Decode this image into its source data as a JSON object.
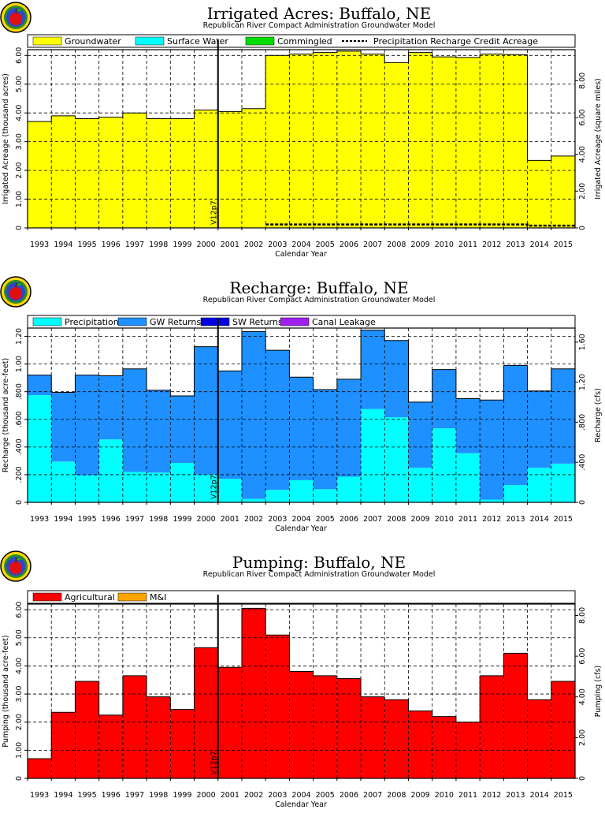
{
  "chart_data": [
    {
      "type": "bar",
      "title": "Irrigated Acres: Buffalo, NE",
      "subtitle": "Republican River Compact Administration Groundwater Model",
      "xlabel": "Calendar Year",
      "ylabel": "Irrigated Acreage (thousand acres)",
      "y2label": "Irrigated Acreage (square miles)",
      "categories": [
        "1993",
        "1994",
        "1995",
        "1996",
        "1997",
        "1998",
        "1999",
        "2000",
        "2001",
        "2002",
        "2003",
        "2004",
        "2005",
        "2006",
        "2007",
        "2008",
        "2009",
        "2010",
        "2011",
        "2012",
        "2013",
        "2014",
        "2015"
      ],
      "ylim": [
        0,
        6.2
      ],
      "yticks": [
        0,
        1.0,
        2.0,
        3.0,
        4.0,
        5.0,
        6.0
      ],
      "yticklabels": [
        "0",
        "1.00",
        "2.00",
        "3.00",
        "4.00",
        "5.00",
        "6.00"
      ],
      "y2lim": [
        0,
        9.69
      ],
      "y2ticks": [
        0,
        2.0,
        4.0,
        6.0,
        8.0
      ],
      "y2ticklabels": [
        "0",
        "2.00",
        "4.00",
        "6.00",
        "8.00"
      ],
      "grid": true,
      "legend": "top",
      "series": [
        {
          "name": "Groundwater",
          "color": "#ffff00",
          "kind": "stack",
          "values": [
            3.7,
            3.9,
            3.8,
            3.85,
            4.0,
            3.8,
            3.8,
            4.1,
            4.05,
            4.15,
            6.0,
            6.05,
            6.1,
            6.15,
            6.05,
            5.75,
            6.1,
            5.95,
            5.93,
            6.05,
            6.03,
            2.35,
            2.5
          ]
        },
        {
          "name": "Surface Water",
          "color": "#00ffff",
          "kind": "stack",
          "values": [
            0,
            0,
            0,
            0,
            0,
            0,
            0,
            0,
            0,
            0,
            0,
            0,
            0,
            0,
            0,
            0,
            0,
            0,
            0,
            0,
            0,
            0,
            0
          ]
        },
        {
          "name": "Commingled",
          "color": "#00dd00",
          "kind": "stack",
          "values": [
            0,
            0,
            0,
            0,
            0,
            0,
            0,
            0,
            0,
            0,
            0,
            0,
            0,
            0,
            0,
            0,
            0,
            0,
            0,
            0,
            0,
            0,
            0
          ]
        },
        {
          "name": "Precipitation Recharge Credit Acreage",
          "color": "#000000",
          "kind": "dashed",
          "values": [
            null,
            null,
            null,
            null,
            null,
            null,
            null,
            null,
            null,
            null,
            0.12,
            0.12,
            0.12,
            0.12,
            0.12,
            0.12,
            0.12,
            0.12,
            0.12,
            0.12,
            0.12,
            0.08,
            0.08
          ]
        }
      ],
      "annotation": {
        "text": "V12p7",
        "x_year": 2000.5
      }
    },
    {
      "type": "bar",
      "title": "Recharge: Buffalo, NE",
      "subtitle": "Republican River Compact Administration Groundwater Model",
      "xlabel": "Calendar Year",
      "ylabel": "Recharge (thousand acre-feet)",
      "y2label": "Recharge (cfs)",
      "categories": [
        "1993",
        "1994",
        "1995",
        "1996",
        "1997",
        "1998",
        "1999",
        "2000",
        "2001",
        "2002",
        "2003",
        "2004",
        "2005",
        "2006",
        "2007",
        "2008",
        "2009",
        "2010",
        "2011",
        "2012",
        "2013",
        "2014",
        "2015"
      ],
      "ylim": [
        0,
        1.26
      ],
      "yticks": [
        0,
        0.2,
        0.4,
        0.6,
        0.8,
        1.0,
        1.2
      ],
      "yticklabels": [
        "0",
        ".200",
        ".400",
        ".600",
        ".800",
        "1.00",
        "1.20"
      ],
      "y2lim": [
        0,
        1.74
      ],
      "y2ticks": [
        0,
        0.4,
        0.8,
        1.2,
        1.6
      ],
      "y2ticklabels": [
        "0",
        ".400",
        ".800",
        "1.20",
        "1.60"
      ],
      "grid": true,
      "legend": "top",
      "series": [
        {
          "name": "Precipitation",
          "color": "#00ffff",
          "kind": "stack",
          "values": [
            0.775,
            0.295,
            0.195,
            0.455,
            0.22,
            0.215,
            0.285,
            0.2,
            0.17,
            0.025,
            0.09,
            0.16,
            0.095,
            0.185,
            0.675,
            0.615,
            0.25,
            0.535,
            0.355,
            0.02,
            0.125,
            0.25,
            0.28
          ]
        },
        {
          "name": "GW Returns",
          "color": "#1e90ff",
          "kind": "stack",
          "values": [
            0.145,
            0.5,
            0.725,
            0.46,
            0.745,
            0.595,
            0.485,
            0.925,
            0.78,
            1.21,
            1.01,
            0.745,
            0.72,
            0.705,
            0.57,
            0.555,
            0.475,
            0.425,
            0.395,
            0.72,
            0.865,
            0.555,
            0.685
          ]
        },
        {
          "name": "SW Returns",
          "color": "#0000e0",
          "kind": "stack",
          "values": [
            0,
            0,
            0,
            0,
            0,
            0,
            0,
            0,
            0,
            0,
            0,
            0,
            0,
            0,
            0,
            0,
            0,
            0,
            0,
            0,
            0,
            0,
            0
          ]
        },
        {
          "name": "Canal Leakage",
          "color": "#a020f0",
          "kind": "stack",
          "values": [
            0,
            0,
            0,
            0,
            0,
            0,
            0,
            0,
            0,
            0,
            0,
            0,
            0,
            0,
            0,
            0,
            0,
            0,
            0,
            0,
            0,
            0,
            0
          ]
        }
      ],
      "annotation": {
        "text": "V12p7",
        "x_year": 2000.5
      }
    },
    {
      "type": "bar",
      "title": "Pumping: Buffalo, NE",
      "subtitle": "Republican River Compact Administration Groundwater Model",
      "xlabel": "Calendar Year",
      "ylabel": "Pumping (thousand acre-feet)",
      "y2label": "Pumping (cfs)",
      "categories": [
        "1993",
        "1994",
        "1995",
        "1996",
        "1997",
        "1998",
        "1999",
        "2000",
        "2001",
        "2002",
        "2003",
        "2004",
        "2005",
        "2006",
        "2007",
        "2008",
        "2009",
        "2010",
        "2011",
        "2012",
        "2013",
        "2014",
        "2015"
      ],
      "ylim": [
        0,
        6.2
      ],
      "yticks": [
        0,
        1.0,
        2.0,
        3.0,
        4.0,
        5.0,
        6.0
      ],
      "yticklabels": [
        "0",
        "1.00",
        "2.00",
        "3.00",
        "4.00",
        "5.00",
        "6.00"
      ],
      "y2lim": [
        0,
        8.56
      ],
      "y2ticks": [
        0,
        2.0,
        4.0,
        6.0,
        8.0
      ],
      "y2ticklabels": [
        "0",
        "2.00",
        "4.00",
        "6.00",
        "8.00"
      ],
      "grid": true,
      "legend": "top",
      "series": [
        {
          "name": "Agricultural",
          "color": "#ff0000",
          "kind": "stack",
          "values": [
            0.7,
            2.35,
            3.45,
            2.25,
            3.65,
            2.9,
            2.45,
            4.65,
            3.95,
            6.05,
            5.1,
            3.8,
            3.65,
            3.55,
            2.9,
            2.8,
            2.4,
            2.2,
            2.0,
            3.65,
            4.45,
            2.8,
            3.45
          ]
        },
        {
          "name": "M&I",
          "color": "#ffa500",
          "kind": "stack",
          "values": [
            0,
            0,
            0,
            0,
            0,
            0,
            0,
            0,
            0,
            0,
            0,
            0,
            0,
            0,
            0,
            0,
            0,
            0,
            0,
            0,
            0,
            0,
            0
          ]
        }
      ],
      "annotation": {
        "text": "V12p7",
        "x_year": 2000.5
      }
    }
  ],
  "logo": {
    "name": "apple-logo"
  }
}
